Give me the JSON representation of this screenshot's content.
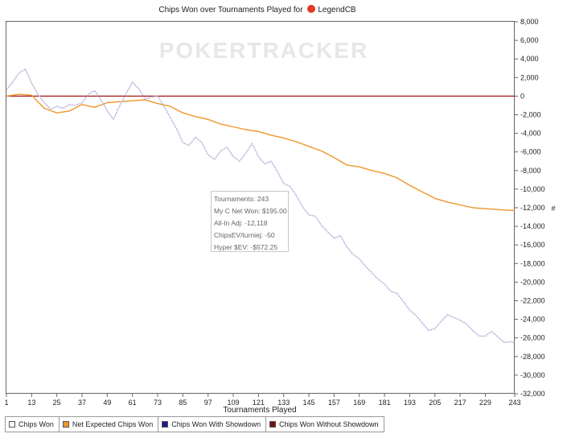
{
  "title_prefix": "Chips Won over Tournaments Played for",
  "player": "LegendCB",
  "watermark": "POKERTRACKER",
  "y_unit": "#",
  "colors": {
    "chips_won": "#b9b3dc",
    "expected": "#f0962a",
    "zero_line": "#a01818",
    "axis": "#666666",
    "with_showdown": "#1a1a8a",
    "without_showdown": "#7a1010"
  },
  "tooltip": [
    "Tournaments: 243",
    "My C Net Won: $195.00",
    "All-In Adj: -12,118",
    "ChipsEV/turniej: -50",
    "Hyper $EV: -$572.25"
  ],
  "legend": [
    {
      "label": "Chips Won",
      "color": "#ffffff"
    },
    {
      "label": "Net Expected Chips Won",
      "color": "#f0962a"
    },
    {
      "label": "Chips Won With Showdown",
      "color": "#1a1a8a"
    },
    {
      "label": "Chips Won Without Showdown",
      "color": "#7a1010"
    }
  ],
  "chart_data": {
    "type": "line",
    "title": "Chips Won over Tournaments Played for LegendCB",
    "xlabel": "Tournaments Played",
    "ylabel": "",
    "xlim": [
      1,
      243
    ],
    "ylim": [
      -32000,
      8000
    ],
    "x_ticks": [
      1,
      13,
      25,
      37,
      49,
      61,
      73,
      85,
      97,
      109,
      121,
      133,
      145,
      157,
      169,
      181,
      193,
      205,
      217,
      229,
      243
    ],
    "y_ticks": [
      8000,
      6000,
      4000,
      2000,
      0,
      -2000,
      -4000,
      -6000,
      -8000,
      -10000,
      -12000,
      -14000,
      -16000,
      -18000,
      -20000,
      -22000,
      -24000,
      -26000,
      -28000,
      -30000,
      -32000
    ],
    "y_tick_labels": [
      "8,000",
      "6,000",
      "4,000",
      "2,000",
      "0",
      "-2,000",
      "-4,000",
      "-6,000",
      "-8,000",
      "-10,000",
      "-12,000",
      "-14,000",
      "-16,000",
      "-18,000",
      "-20,000",
      "-22,000",
      "-24,000",
      "-26,000",
      "-28,000",
      "-30,000",
      "-32,000"
    ],
    "grid": false,
    "legend_position": "bottom",
    "series": [
      {
        "name": "Chips Won",
        "x": [
          1,
          4,
          7,
          10,
          13,
          16,
          19,
          22,
          25,
          28,
          31,
          34,
          37,
          40,
          43,
          46,
          49,
          52,
          55,
          58,
          61,
          64,
          67,
          70,
          73,
          76,
          79,
          82,
          85,
          88,
          91,
          94,
          97,
          100,
          103,
          106,
          109,
          112,
          115,
          118,
          121,
          124,
          127,
          130,
          133,
          136,
          139,
          142,
          145,
          148,
          151,
          154,
          157,
          160,
          163,
          166,
          169,
          172,
          175,
          178,
          181,
          184,
          187,
          190,
          193,
          196,
          199,
          202,
          205,
          208,
          211,
          214,
          217,
          220,
          223,
          226,
          229,
          232,
          235,
          238,
          241,
          243
        ],
        "values": [
          700,
          1500,
          2500,
          2900,
          1400,
          200,
          -700,
          -1400,
          -1100,
          -1300,
          -900,
          -1000,
          -700,
          200,
          600,
          -400,
          -1600,
          -2500,
          -1000,
          300,
          1500,
          800,
          -300,
          -100,
          0,
          -1100,
          -2300,
          -3500,
          -5000,
          -5300,
          -4400,
          -5000,
          -6300,
          -6800,
          -5900,
          -5500,
          -6500,
          -7000,
          -6100,
          -5100,
          -6500,
          -7300,
          -7000,
          -8100,
          -9400,
          -9700,
          -10700,
          -11900,
          -12800,
          -12900,
          -13900,
          -14600,
          -15300,
          -15000,
          -16200,
          -17000,
          -17500,
          -18300,
          -19000,
          -19700,
          -20200,
          -21000,
          -21200,
          -22100,
          -23000,
          -23600,
          -24400,
          -25200,
          -25000,
          -24200,
          -23500,
          -23800,
          -24100,
          -24500,
          -25200,
          -25800,
          -25800,
          -25300,
          -25900,
          -26500,
          -26400,
          -26500
        ]
      },
      {
        "name": "Net Expected Chips Won",
        "x": [
          1,
          7,
          13,
          19,
          25,
          31,
          37,
          43,
          49,
          55,
          61,
          67,
          73,
          79,
          85,
          91,
          97,
          103,
          109,
          115,
          121,
          127,
          133,
          139,
          145,
          151,
          157,
          163,
          169,
          175,
          181,
          187,
          193,
          199,
          205,
          211,
          217,
          223,
          229,
          235,
          243
        ],
        "values": [
          0,
          200,
          100,
          -1300,
          -1800,
          -1600,
          -900,
          -1200,
          -700,
          -600,
          -500,
          -400,
          -800,
          -1100,
          -1800,
          -2200,
          -2500,
          -3000,
          -3300,
          -3600,
          -3800,
          -4200,
          -4500,
          -4900,
          -5400,
          -5900,
          -6600,
          -7400,
          -7600,
          -8000,
          -8300,
          -8800,
          -9600,
          -10300,
          -11000,
          -11400,
          -11700,
          -12000,
          -12100,
          -12200,
          -12300
        ]
      }
    ]
  }
}
